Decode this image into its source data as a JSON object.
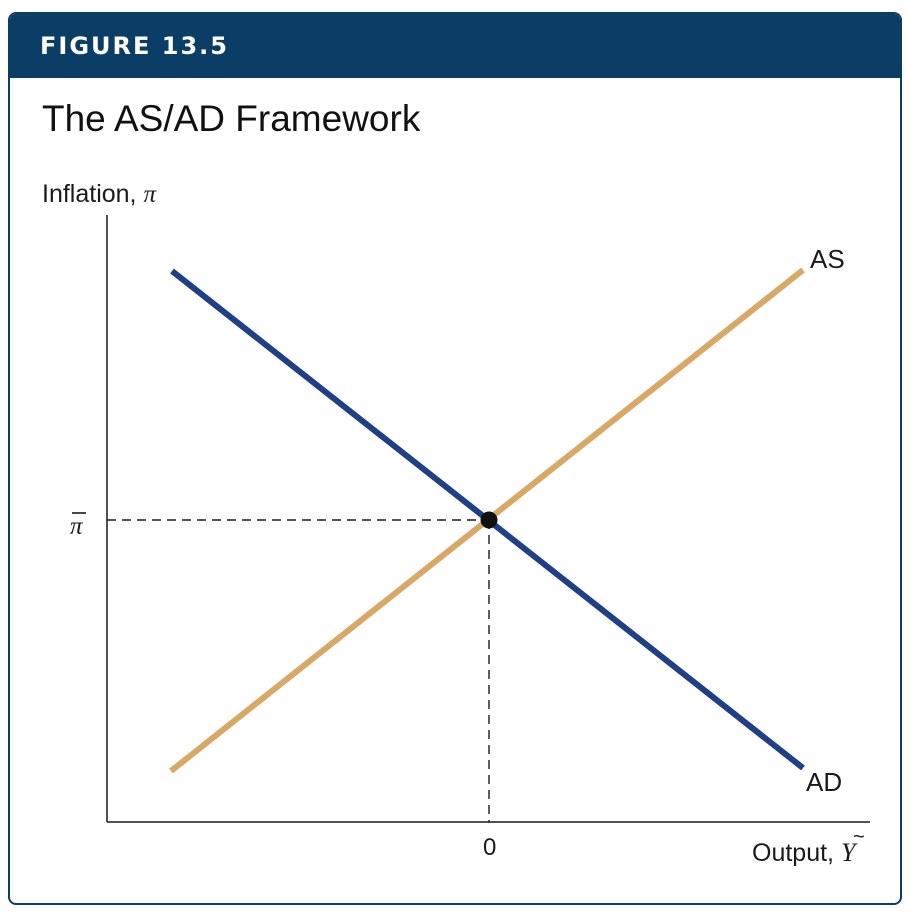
{
  "figure": {
    "label": "FIGURE 13.5",
    "title": "The AS/AD Framework",
    "colors": {
      "header": "#0b3e66",
      "ad_curve": "#1f3f86",
      "as_curve": "#d9a865",
      "point": "#111111"
    }
  },
  "chart_data": {
    "type": "line",
    "ylabel": "Inflation, ",
    "ylabel_symbol": "π",
    "xlabel": "Output, ",
    "xlabel_symbol": "Y",
    "y_tick_symbol": "π",
    "x_tick_label": "0",
    "curves": [
      {
        "name": "AS",
        "label": "AS",
        "color": "#d9a865"
      },
      {
        "name": "AD",
        "label": "AD",
        "color": "#1f3f86"
      }
    ],
    "equilibrium": {
      "x": 0,
      "y": "π̄"
    }
  }
}
